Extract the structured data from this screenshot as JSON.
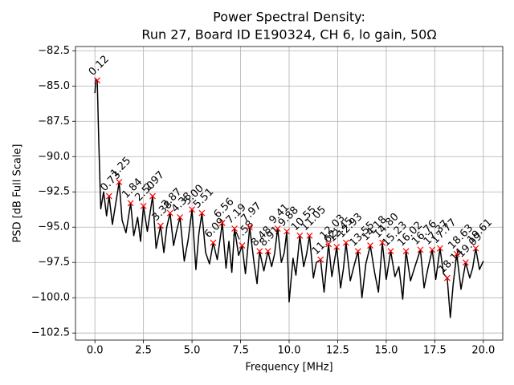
{
  "chart_data": {
    "type": "line",
    "title_lines": [
      "Power Spectral Density:",
      "Run 27, Board ID E190324, CH 6, lo gain, 50Ω"
    ],
    "x_label": "Frequency [MHz]",
    "y_label": "PSD [dB Full Scale]",
    "xlim": [
      -1,
      21
    ],
    "ylim": [
      -103.0,
      -82.2
    ],
    "xticks": [
      {
        "value": 0,
        "label": "0.0"
      },
      {
        "value": 2.5,
        "label": "2.5"
      },
      {
        "value": 5,
        "label": "5.0"
      },
      {
        "value": 7.5,
        "label": "7.5"
      },
      {
        "value": 10,
        "label": "10.0"
      },
      {
        "value": 12.5,
        "label": "12.5"
      },
      {
        "value": 15,
        "label": "15.0"
      },
      {
        "value": 17.5,
        "label": "17.5"
      },
      {
        "value": 20,
        "label": "20.0"
      }
    ],
    "yticks": [
      {
        "value": -82.5,
        "label": "−82.5"
      },
      {
        "value": -85,
        "label": "−85.0"
      },
      {
        "value": -87.5,
        "label": "−87.5"
      },
      {
        "value": -90,
        "label": "−90.0"
      },
      {
        "value": -92.5,
        "label": "−92.5"
      },
      {
        "value": -95,
        "label": "−95.0"
      },
      {
        "value": -97.5,
        "label": "−97.5"
      },
      {
        "value": -100,
        "label": "−100.0"
      },
      {
        "value": -102.5,
        "label": "−102.5"
      }
    ],
    "grid": true,
    "line": {
      "color": "#000000",
      "x": [
        0.0,
        0.05,
        0.12,
        0.2,
        0.3,
        0.45,
        0.6,
        0.73,
        0.9,
        1.05,
        1.25,
        1.4,
        1.6,
        1.84,
        2.0,
        2.2,
        2.35,
        2.5,
        2.7,
        2.97,
        3.15,
        3.38,
        3.55,
        3.7,
        3.87,
        4.05,
        4.2,
        4.38,
        4.6,
        4.8,
        5.0,
        5.2,
        5.35,
        5.51,
        5.7,
        5.9,
        6.09,
        6.3,
        6.56,
        6.75,
        6.9,
        7.05,
        7.19,
        7.4,
        7.58,
        7.75,
        7.97,
        8.2,
        8.35,
        8.48,
        8.7,
        8.91,
        9.1,
        9.25,
        9.41,
        9.6,
        9.75,
        9.88,
        10.0,
        10.2,
        10.35,
        10.55,
        10.75,
        10.9,
        11.05,
        11.25,
        11.4,
        11.62,
        11.8,
        12.03,
        12.2,
        12.45,
        12.65,
        12.8,
        12.93,
        13.15,
        13.35,
        13.55,
        13.75,
        13.95,
        14.18,
        14.4,
        14.6,
        14.8,
        15.0,
        15.23,
        15.45,
        15.65,
        15.85,
        16.02,
        16.25,
        16.5,
        16.76,
        16.95,
        17.15,
        17.37,
        17.55,
        17.77,
        17.95,
        18.14,
        18.3,
        18.45,
        18.63,
        18.85,
        19.09,
        19.3,
        19.45,
        19.61,
        19.8,
        20.0
      ],
      "values": [
        -85.5,
        -84.5,
        -84.6,
        -89.0,
        -93.7,
        -92.5,
        -94.2,
        -92.8,
        -94.8,
        -93.5,
        -91.8,
        -94.5,
        -95.4,
        -93.3,
        -95.6,
        -94.3,
        -96.0,
        -93.5,
        -95.3,
        -92.8,
        -96.5,
        -94.9,
        -96.8,
        -95.0,
        -94.0,
        -96.3,
        -95.3,
        -94.3,
        -97.4,
        -95.9,
        -93.75,
        -98.0,
        -95.5,
        -94.0,
        -96.8,
        -97.6,
        -96.1,
        -97.3,
        -94.7,
        -97.9,
        -96.0,
        -98.2,
        -95.1,
        -97.0,
        -96.3,
        -98.3,
        -95.0,
        -97.6,
        -99.0,
        -96.7,
        -98.1,
        -96.7,
        -97.8,
        -96.9,
        -95.1,
        -97.5,
        -96.8,
        -95.3,
        -100.3,
        -97.2,
        -98.4,
        -95.6,
        -97.8,
        -96.9,
        -95.6,
        -98.6,
        -97.5,
        -97.3,
        -99.6,
        -96.2,
        -98.5,
        -96.4,
        -99.3,
        -97.9,
        -96.1,
        -98.8,
        -97.7,
        -96.7,
        -100.0,
        -97.6,
        -96.3,
        -98.2,
        -99.6,
        -96.1,
        -98.7,
        -96.7,
        -98.5,
        -97.8,
        -100.1,
        -96.7,
        -98.8,
        -97.7,
        -96.6,
        -99.3,
        -97.9,
        -96.6,
        -98.7,
        -96.5,
        -98.3,
        -98.6,
        -101.4,
        -99.0,
        -96.9,
        -99.4,
        -97.5,
        -98.6,
        -97.9,
        -96.5,
        -98.0,
        -97.4
      ]
    },
    "peaks": {
      "color": "#ff0000",
      "x": [
        0.12,
        0.73,
        1.25,
        1.84,
        2.5,
        2.97,
        3.38,
        3.87,
        4.38,
        5.0,
        5.51,
        6.09,
        6.56,
        7.19,
        7.58,
        7.97,
        8.48,
        8.91,
        9.41,
        9.88,
        10.55,
        11.05,
        11.62,
        12.03,
        12.45,
        12.93,
        13.55,
        14.18,
        14.8,
        15.23,
        16.02,
        16.76,
        17.37,
        17.77,
        18.14,
        18.63,
        19.09,
        19.61
      ],
      "x_labels": [
        "0.12",
        "0.73",
        "1.25",
        "1.84",
        "2.50",
        "2.97",
        "3.38",
        "3.87",
        "4.38",
        "5.00",
        "5.51",
        "6.09",
        "6.56",
        "7.19",
        "7.58",
        "7.97",
        "8.48",
        "8.91",
        "9.41",
        "9.88",
        "10.55",
        "11.05",
        "11.62",
        "12.03",
        "12.45",
        "12.93",
        "13.55",
        "14.18",
        "14.80",
        "15.23",
        "16.02",
        "16.76",
        "17.37",
        "17.77",
        "18.14",
        "18.63",
        "19.09",
        "19.61"
      ],
      "values": [
        -84.6,
        -92.8,
        -91.8,
        -93.3,
        -93.5,
        -92.8,
        -94.9,
        -94.0,
        -94.3,
        -93.75,
        -94.0,
        -96.1,
        -94.7,
        -95.1,
        -96.3,
        -95.0,
        -96.7,
        -96.7,
        -95.1,
        -95.3,
        -95.6,
        -95.6,
        -97.3,
        -96.2,
        -96.4,
        -96.1,
        -96.7,
        -96.3,
        -96.1,
        -96.7,
        -96.7,
        -96.6,
        -96.6,
        -96.5,
        -98.6,
        -96.9,
        -97.5,
        -96.5
      ]
    }
  }
}
